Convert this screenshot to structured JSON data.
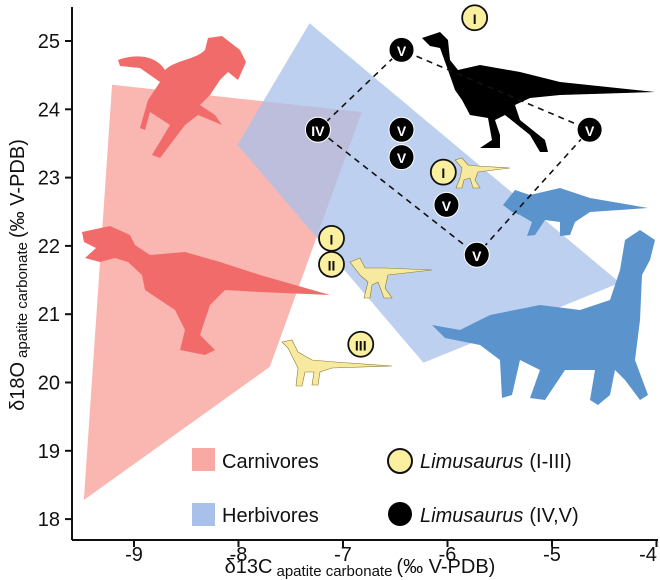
{
  "chart_data": {
    "type": "scatter",
    "xlabel": {
      "main": "δ13C",
      "sub": "apatite carbonate",
      "unit": "(‰ V-PDB)"
    },
    "ylabel": {
      "main": "δ18O",
      "sub": "apatite carbonate",
      "unit": "(‰ V-PDB)"
    },
    "xlim": [
      -9.6,
      -4
    ],
    "ylim": [
      17.7,
      25.5
    ],
    "xticks": [
      "-9",
      "-8",
      "-7",
      "-6",
      "-5",
      "-4"
    ],
    "yticks": [
      "18",
      "19",
      "20",
      "21",
      "22",
      "23",
      "24",
      "25"
    ],
    "grid": false,
    "legend_position": "bottom-right",
    "regions": [
      {
        "name": "Carnivores",
        "color": "#f9a9a3",
        "polygon": [
          [
            -9.21,
            24.36
          ],
          [
            -6.82,
            23.96
          ],
          [
            -7.7,
            20.23
          ],
          [
            -9.48,
            18.28
          ]
        ]
      },
      {
        "name": "Herbivores",
        "color": "#a8c0ea",
        "polygon": [
          [
            -7.32,
            25.26
          ],
          [
            -4.35,
            21.46
          ],
          [
            -6.23,
            20.29
          ],
          [
            -8.01,
            23.48
          ]
        ]
      }
    ],
    "series": [
      {
        "name": "Limusaurus (I-III)",
        "color": "#fbf0a0",
        "points": [
          {
            "x": -5.74,
            "y": 25.34,
            "label": "I"
          },
          {
            "x": -6.04,
            "y": 23.08,
            "label": "I"
          },
          {
            "x": -7.11,
            "y": 22.11,
            "label": "I"
          },
          {
            "x": -7.11,
            "y": 21.73,
            "label": "II"
          },
          {
            "x": -6.83,
            "y": 20.56,
            "label": "III"
          }
        ]
      },
      {
        "name": "Limusaurus (IV,V)",
        "color": "#000000",
        "points": [
          {
            "x": -6.44,
            "y": 24.87,
            "label": "V"
          },
          {
            "x": -7.24,
            "y": 23.7,
            "label": "IV"
          },
          {
            "x": -6.44,
            "y": 23.7,
            "label": "V"
          },
          {
            "x": -6.44,
            "y": 23.3,
            "label": "V"
          },
          {
            "x": -6.01,
            "y": 22.6,
            "label": "V"
          },
          {
            "x": -5.72,
            "y": 21.87,
            "label": "V"
          },
          {
            "x": -4.64,
            "y": 23.7,
            "label": "V"
          }
        ]
      }
    ],
    "dashed_outline_points": [
      [
        -7.24,
        23.7
      ],
      [
        -6.44,
        24.87
      ],
      [
        -4.64,
        23.7
      ],
      [
        -5.72,
        21.87
      ]
    ]
  },
  "legend": {
    "carnivores": "Carnivores",
    "herbivores": "Herbivores",
    "lim1_name": "Limusaurus",
    "lim1_range": " (I-III)",
    "lim2_name": "Limusaurus",
    "lim2_range": " (IV,V)"
  },
  "colors": {
    "carnivore_silhouette": "#f26b6b",
    "herbivore_silhouette": "#5b93cc",
    "limusaurus_adult": "#000000",
    "limusaurus_juvenile": "#f7e9a0"
  }
}
